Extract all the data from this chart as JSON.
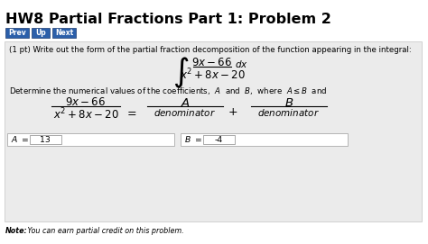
{
  "title": "HW8 Partial Fractions Part 1: Problem 2",
  "nav_buttons": [
    "Prev",
    "Up",
    "Next"
  ],
  "nav_button_color": "#2b5faa",
  "nav_button_text_color": "#ffffff",
  "problem_statement": "(1 pt) Write out the form of the partial fraction decomposition of the function appearing in the integral:",
  "A_value": "13",
  "B_value": "-4",
  "note_bold": "Note:",
  "note_rest": " You can earn partial credit on this problem.",
  "bg_color": "#ffffff",
  "panel_bg_color": "#ebebeb",
  "panel_border_color": "#cccccc",
  "title_fontsize": 11.5,
  "body_fontsize": 6.2,
  "math_fontsize": 8.5,
  "small_math_fontsize": 7.5,
  "note_fontsize": 5.8
}
